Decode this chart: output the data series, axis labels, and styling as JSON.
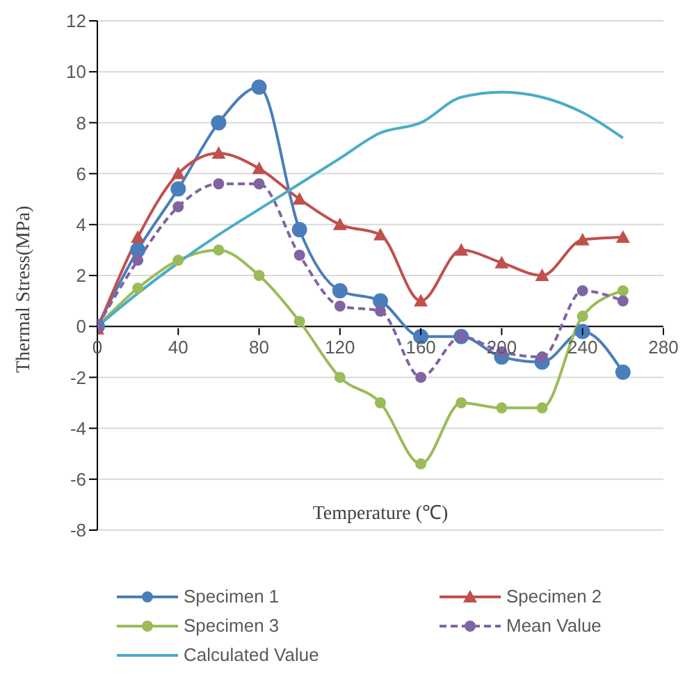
{
  "chart_data": {
    "type": "line",
    "xlabel": "Temperature (℃)",
    "ylabel": "Thermal Stress(MPa)",
    "x": [
      0,
      20,
      40,
      60,
      80,
      100,
      120,
      140,
      160,
      180,
      200,
      220,
      240,
      260
    ],
    "xlim": [
      0,
      280
    ],
    "xticks": [
      0,
      40,
      80,
      120,
      160,
      200,
      240,
      280
    ],
    "ylim": [
      -8,
      12
    ],
    "yticks": [
      -8,
      -6,
      -4,
      -2,
      0,
      2,
      4,
      6,
      8,
      10,
      12
    ],
    "grid": "y",
    "legend": "bottom",
    "line_style": "solid",
    "series": [
      {
        "name": "Specimen 1",
        "color": "#4a7ebb",
        "marker": "circle",
        "values": [
          0,
          3.0,
          5.4,
          8.0,
          9.4,
          3.8,
          1.4,
          1.0,
          -0.4,
          -0.4,
          -1.2,
          -1.4,
          -0.2,
          -1.8
        ]
      },
      {
        "name": "Specimen 2",
        "color": "#c0504d",
        "marker": "triangle",
        "values": [
          -0.1,
          3.5,
          6.0,
          6.8,
          6.2,
          5.0,
          4.0,
          3.6,
          1.0,
          3.0,
          2.5,
          2.0,
          3.4,
          3.5
        ]
      },
      {
        "name": "Specimen 3",
        "color": "#9bbb59",
        "marker": "circle",
        "values": [
          0,
          1.5,
          2.6,
          3.0,
          2.0,
          0.2,
          -2.0,
          -3.0,
          -5.4,
          -3.0,
          -3.2,
          -3.2,
          0.4,
          1.4
        ]
      },
      {
        "name": "Mean Value",
        "color": "#8064a2",
        "marker": "circle",
        "line_style": "dashed",
        "values": [
          0,
          2.6,
          4.7,
          5.6,
          5.6,
          2.8,
          0.8,
          0.6,
          -2.0,
          -0.4,
          -1.0,
          -1.2,
          1.4,
          1.0
        ]
      },
      {
        "name": "Calculated Value",
        "color": "#4bacc6",
        "marker": "none",
        "values": [
          0,
          1.3,
          2.5,
          3.6,
          4.6,
          5.6,
          6.6,
          7.6,
          8.0,
          9.0,
          9.2,
          9.0,
          8.4,
          7.4
        ]
      }
    ]
  }
}
